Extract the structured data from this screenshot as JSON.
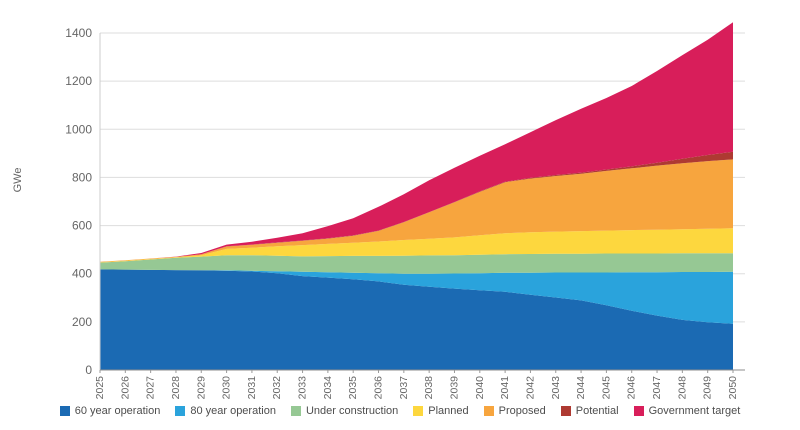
{
  "chart_data": {
    "type": "area",
    "stacked": true,
    "title": "",
    "xlabel": "",
    "ylabel": "GWe",
    "ylim": [
      0,
      1400
    ],
    "yticks": [
      0,
      200,
      400,
      600,
      800,
      1000,
      1200,
      1400
    ],
    "grid": "horizontal",
    "legend_position": "bottom",
    "x": [
      2025,
      2026,
      2027,
      2028,
      2029,
      2030,
      2031,
      2032,
      2033,
      2034,
      2035,
      2036,
      2037,
      2038,
      2039,
      2040,
      2041,
      2042,
      2043,
      2044,
      2045,
      2046,
      2047,
      2048,
      2049,
      2050
    ],
    "series": [
      {
        "name": "60 year operation",
        "color": "#1b6ab3",
        "values": [
          418,
          417,
          416,
          415,
          414,
          412,
          409,
          402,
          390,
          384,
          377,
          368,
          354,
          346,
          338,
          331,
          325,
          313,
          301,
          289,
          269,
          246,
          226,
          208,
          198,
          192
        ]
      },
      {
        "name": "80 year operation",
        "color": "#2aa3dc",
        "values": [
          0,
          0,
          0,
          0,
          0,
          2,
          3,
          8,
          18,
          22,
          27,
          34,
          46,
          54,
          63,
          71,
          79,
          91,
          104,
          116,
          136,
          160,
          180,
          199,
          209,
          216
        ]
      },
      {
        "name": "Under construction",
        "color": "#96c894",
        "values": [
          28,
          35,
          43,
          51,
          57,
          63,
          65,
          65,
          64,
          67,
          70,
          72,
          75,
          76,
          76,
          77,
          77,
          78,
          78,
          78,
          79,
          78,
          78,
          78,
          78,
          77
        ]
      },
      {
        "name": "Planned",
        "color": "#fdd73e",
        "values": [
          2,
          2,
          2,
          2,
          6,
          26,
          31,
          39,
          47,
          51,
          55,
          60,
          65,
          69,
          74,
          81,
          87,
          90,
          92,
          94,
          95,
          97,
          99,
          100,
          102,
          104
        ]
      },
      {
        "name": "Proposed",
        "color": "#f7a53e",
        "values": [
          2,
          2,
          2,
          2,
          4,
          10,
          12,
          15,
          18,
          22,
          29,
          44,
          74,
          110,
          146,
          180,
          212,
          223,
          231,
          238,
          248,
          257,
          266,
          274,
          281,
          286
        ]
      },
      {
        "name": "Potential",
        "color": "#ae3a32",
        "values": [
          0,
          0,
          0,
          0,
          0,
          1,
          1,
          1,
          1,
          1,
          1,
          1,
          1,
          1,
          1,
          2,
          2,
          3,
          4,
          5,
          6,
          8,
          12,
          19,
          25,
          32
        ]
      },
      {
        "name": "Government target",
        "color": "#d81e5a",
        "values": [
          0,
          0,
          0,
          1,
          5,
          7,
          12,
          19,
          30,
          51,
          71,
          99,
          115,
          132,
          142,
          148,
          156,
          190,
          228,
          265,
          297,
          334,
          381,
          430,
          479,
          538
        ]
      }
    ],
    "colors": {
      "gridline": "#dddddd",
      "y_axis_line": "#cccccc",
      "x_axis_line": "#8c8c8c",
      "tick": "#999999",
      "tick_text": "#666666",
      "legend_text": "#4d4d4d"
    }
  }
}
